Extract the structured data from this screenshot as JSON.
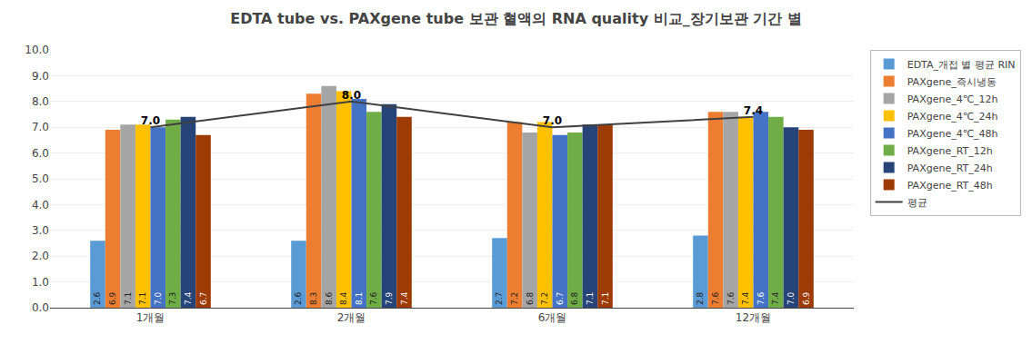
{
  "chart_data": {
    "type": "bar",
    "title": "EDTA tube vs. PAXgene tube 보관 혈액의 RNA quality 비교_장기보관 기간 별",
    "categories": [
      "1개월",
      "2개월",
      "6개월",
      "12개월"
    ],
    "series": [
      {
        "name": "EDTA_개접 별 평균 RIN",
        "color": "#5B9BD5",
        "values": [
          2.6,
          2.6,
          2.7,
          2.8
        ],
        "value_labels": [
          "2.6",
          "2.6",
          "2.7",
          "2.8"
        ]
      },
      {
        "name": "PAXgene_즉시냉동",
        "color": "#ED7D31",
        "values": [
          6.9,
          8.3,
          7.2,
          7.6
        ],
        "value_labels": [
          "6.9",
          "8.3",
          "7.2",
          "7.6"
        ]
      },
      {
        "name": "PAXgene_4℃_12h",
        "color": "#A5A5A5",
        "values": [
          7.1,
          8.6,
          6.8,
          7.6
        ],
        "value_labels": [
          "7.1",
          "8.6",
          "6.8",
          "7.6"
        ]
      },
      {
        "name": "PAXgene_4℃_24h",
        "color": "#FFC000",
        "values": [
          7.1,
          8.4,
          7.2,
          7.4
        ],
        "value_labels": [
          "7.1",
          "8.4",
          "7.2",
          "7.4"
        ]
      },
      {
        "name": "PAXgene_4℃_48h",
        "color": "#4472C4",
        "values": [
          7.0,
          8.1,
          6.7,
          7.6
        ],
        "value_labels": [
          "7.0",
          "8.1",
          "6.7",
          "7.6"
        ]
      },
      {
        "name": "PAXgene_RT_12h",
        "color": "#70AD47",
        "values": [
          7.3,
          7.6,
          6.8,
          7.4
        ],
        "value_labels": [
          "7.3",
          "7.6",
          "6.8",
          "7.4"
        ]
      },
      {
        "name": "PAXgene_RT_24h",
        "color": "#264478",
        "values": [
          7.4,
          7.9,
          7.1,
          7.0
        ],
        "value_labels": [
          "7.4",
          "7.9",
          "7.1",
          "7.0"
        ]
      },
      {
        "name": "PAXgene_RT_48h",
        "color": "#9E3A04",
        "values": [
          6.7,
          7.4,
          7.1,
          6.9
        ],
        "value_labels": [
          "6.7",
          "7.4",
          "7.1",
          "6.9"
        ]
      },
      {
        "name": "평균",
        "type": "line",
        "color": "#404040",
        "values": [
          7.0,
          8.0,
          7.0,
          7.4
        ],
        "value_labels": [
          "7.0",
          "8.0",
          "7.0",
          "7.4"
        ]
      }
    ],
    "ylim": [
      0.0,
      10.0
    ],
    "yticks": [
      {
        "value": 0,
        "label": "0.0"
      },
      {
        "value": 1,
        "label": "1.0"
      },
      {
        "value": 2,
        "label": "2.0"
      },
      {
        "value": 3,
        "label": "3.0"
      },
      {
        "value": 4,
        "label": "4.0"
      },
      {
        "value": 5,
        "label": "5.0"
      },
      {
        "value": 6,
        "label": "6.0"
      },
      {
        "value": 7,
        "label": "7.0"
      },
      {
        "value": 8,
        "label": "8.0"
      },
      {
        "value": 9,
        "label": "9.0"
      },
      {
        "value": 10,
        "label": "10.0"
      }
    ],
    "grid": true,
    "data_labels": true,
    "legend": "right"
  }
}
